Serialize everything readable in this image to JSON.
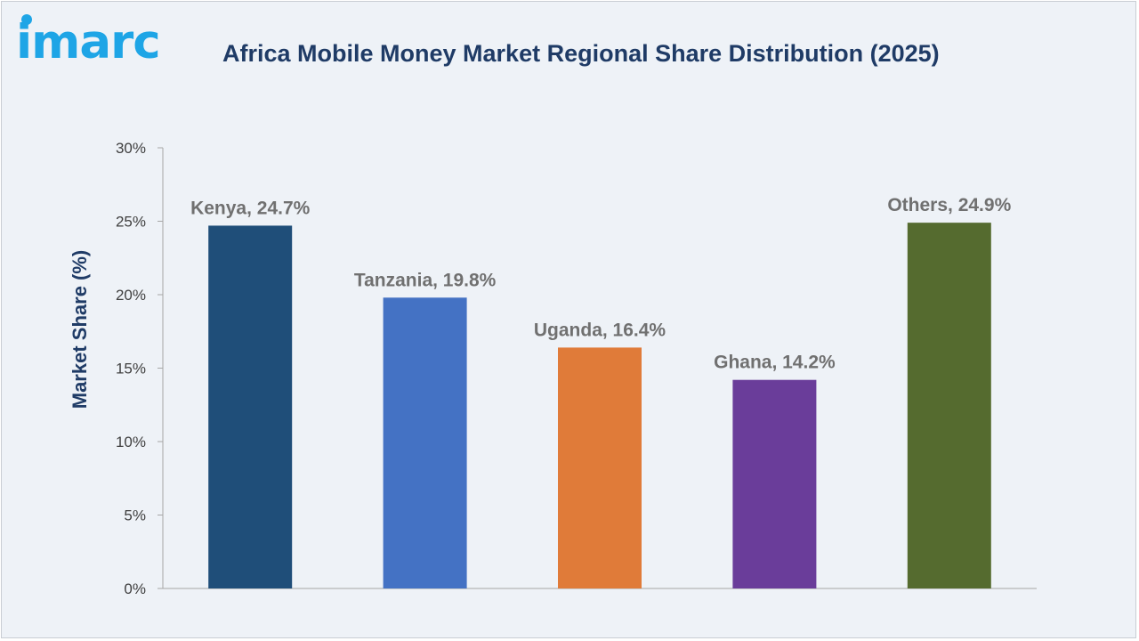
{
  "logo": {
    "text": "imarc",
    "color": "#1ea5e6"
  },
  "chart_data": {
    "type": "bar",
    "title": "Africa Mobile Money Market Regional Share Distribution (2025)",
    "xlabel": "",
    "ylabel": "Market Share (%)",
    "ylim": [
      0,
      30
    ],
    "yticks": [
      0,
      5,
      10,
      15,
      20,
      25,
      30
    ],
    "ytick_labels": [
      "0%",
      "5%",
      "10%",
      "15%",
      "20%",
      "25%",
      "30%"
    ],
    "categories": [
      "Kenya",
      "Tanzania",
      "Uganda",
      "Ghana",
      "Others"
    ],
    "values": [
      24.7,
      19.8,
      16.4,
      14.2,
      24.9
    ],
    "data_labels": [
      "Kenya, 24.7%",
      "Tanzania, 19.8%",
      "Uganda, 16.4%",
      "Ghana, 14.2%",
      "Others, 24.9%"
    ],
    "colors": [
      "#1f4e79",
      "#4472c4",
      "#e07b39",
      "#6a3d9a",
      "#556b2f"
    ],
    "grid": false,
    "legend": "none"
  }
}
